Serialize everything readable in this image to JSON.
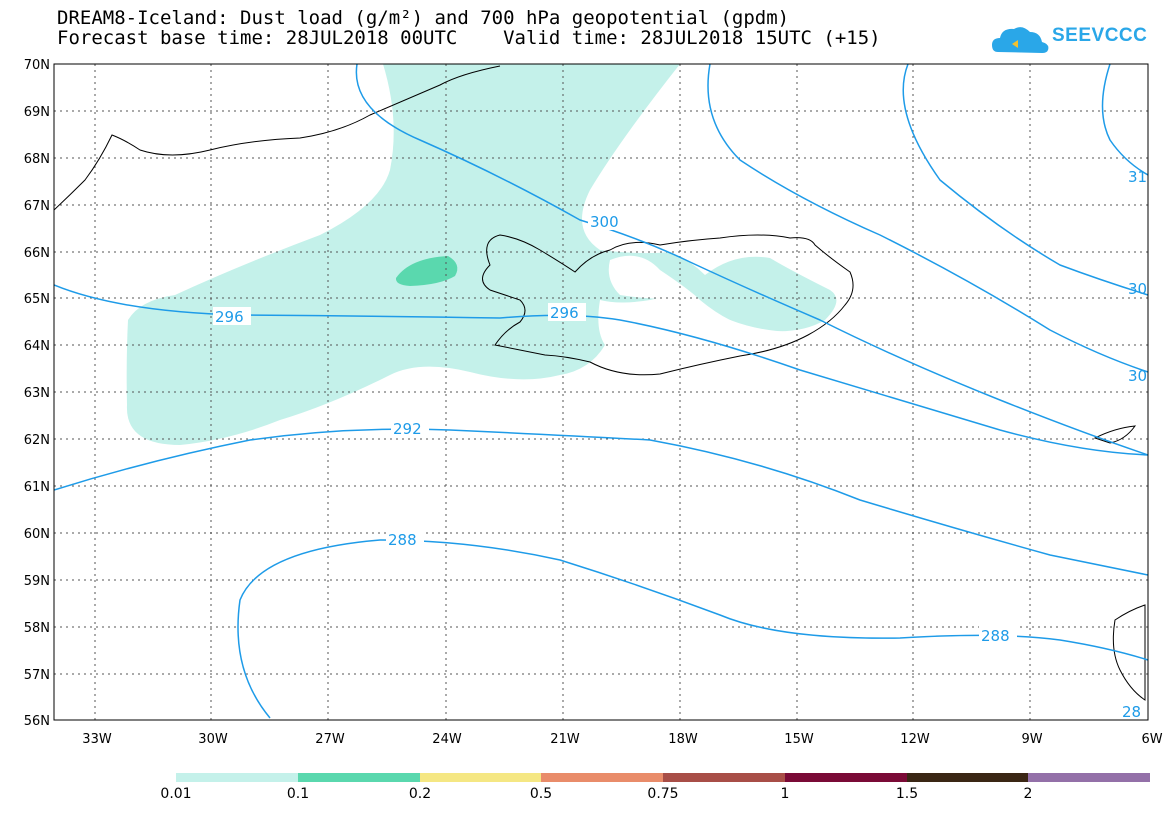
{
  "title": {
    "line1": "DREAM8-Iceland: Dust load (g/m²) and 700 hPa geopotential (gpdm)",
    "line2": "Forecast base time: 28JUL2018 00UTC    Valid time: 28JUL2018 15UTC (+15)"
  },
  "logo": {
    "text": "SEEVCCC",
    "icon": "cloud-icon",
    "color": "#2aa7e8"
  },
  "axes": {
    "lat_labels": [
      "70N",
      "69N",
      "68N",
      "67N",
      "66N",
      "65N",
      "64N",
      "63N",
      "62N",
      "61N",
      "60N",
      "59N",
      "58N",
      "57N",
      "56N"
    ],
    "lon_labels": [
      "33W",
      "30W",
      "27W",
      "24W",
      "21W",
      "18W",
      "15W",
      "12W",
      "9W",
      "6W"
    ]
  },
  "contours": {
    "color": "#1e9be8",
    "labels": [
      "300",
      "296",
      "296",
      "292",
      "288",
      "288",
      "31",
      "30",
      "30",
      "28"
    ]
  },
  "legend": {
    "labels": [
      "0.01",
      "0.1",
      "0.2",
      "0.5",
      "0.75",
      "1",
      "1.5",
      "2"
    ],
    "colors": [
      "#c4f1ea",
      "#5ad8ae",
      "#f5e783",
      "#e98c6a",
      "#a84e47",
      "#7a0a36",
      "#3a2614",
      "#9370a8"
    ]
  }
}
